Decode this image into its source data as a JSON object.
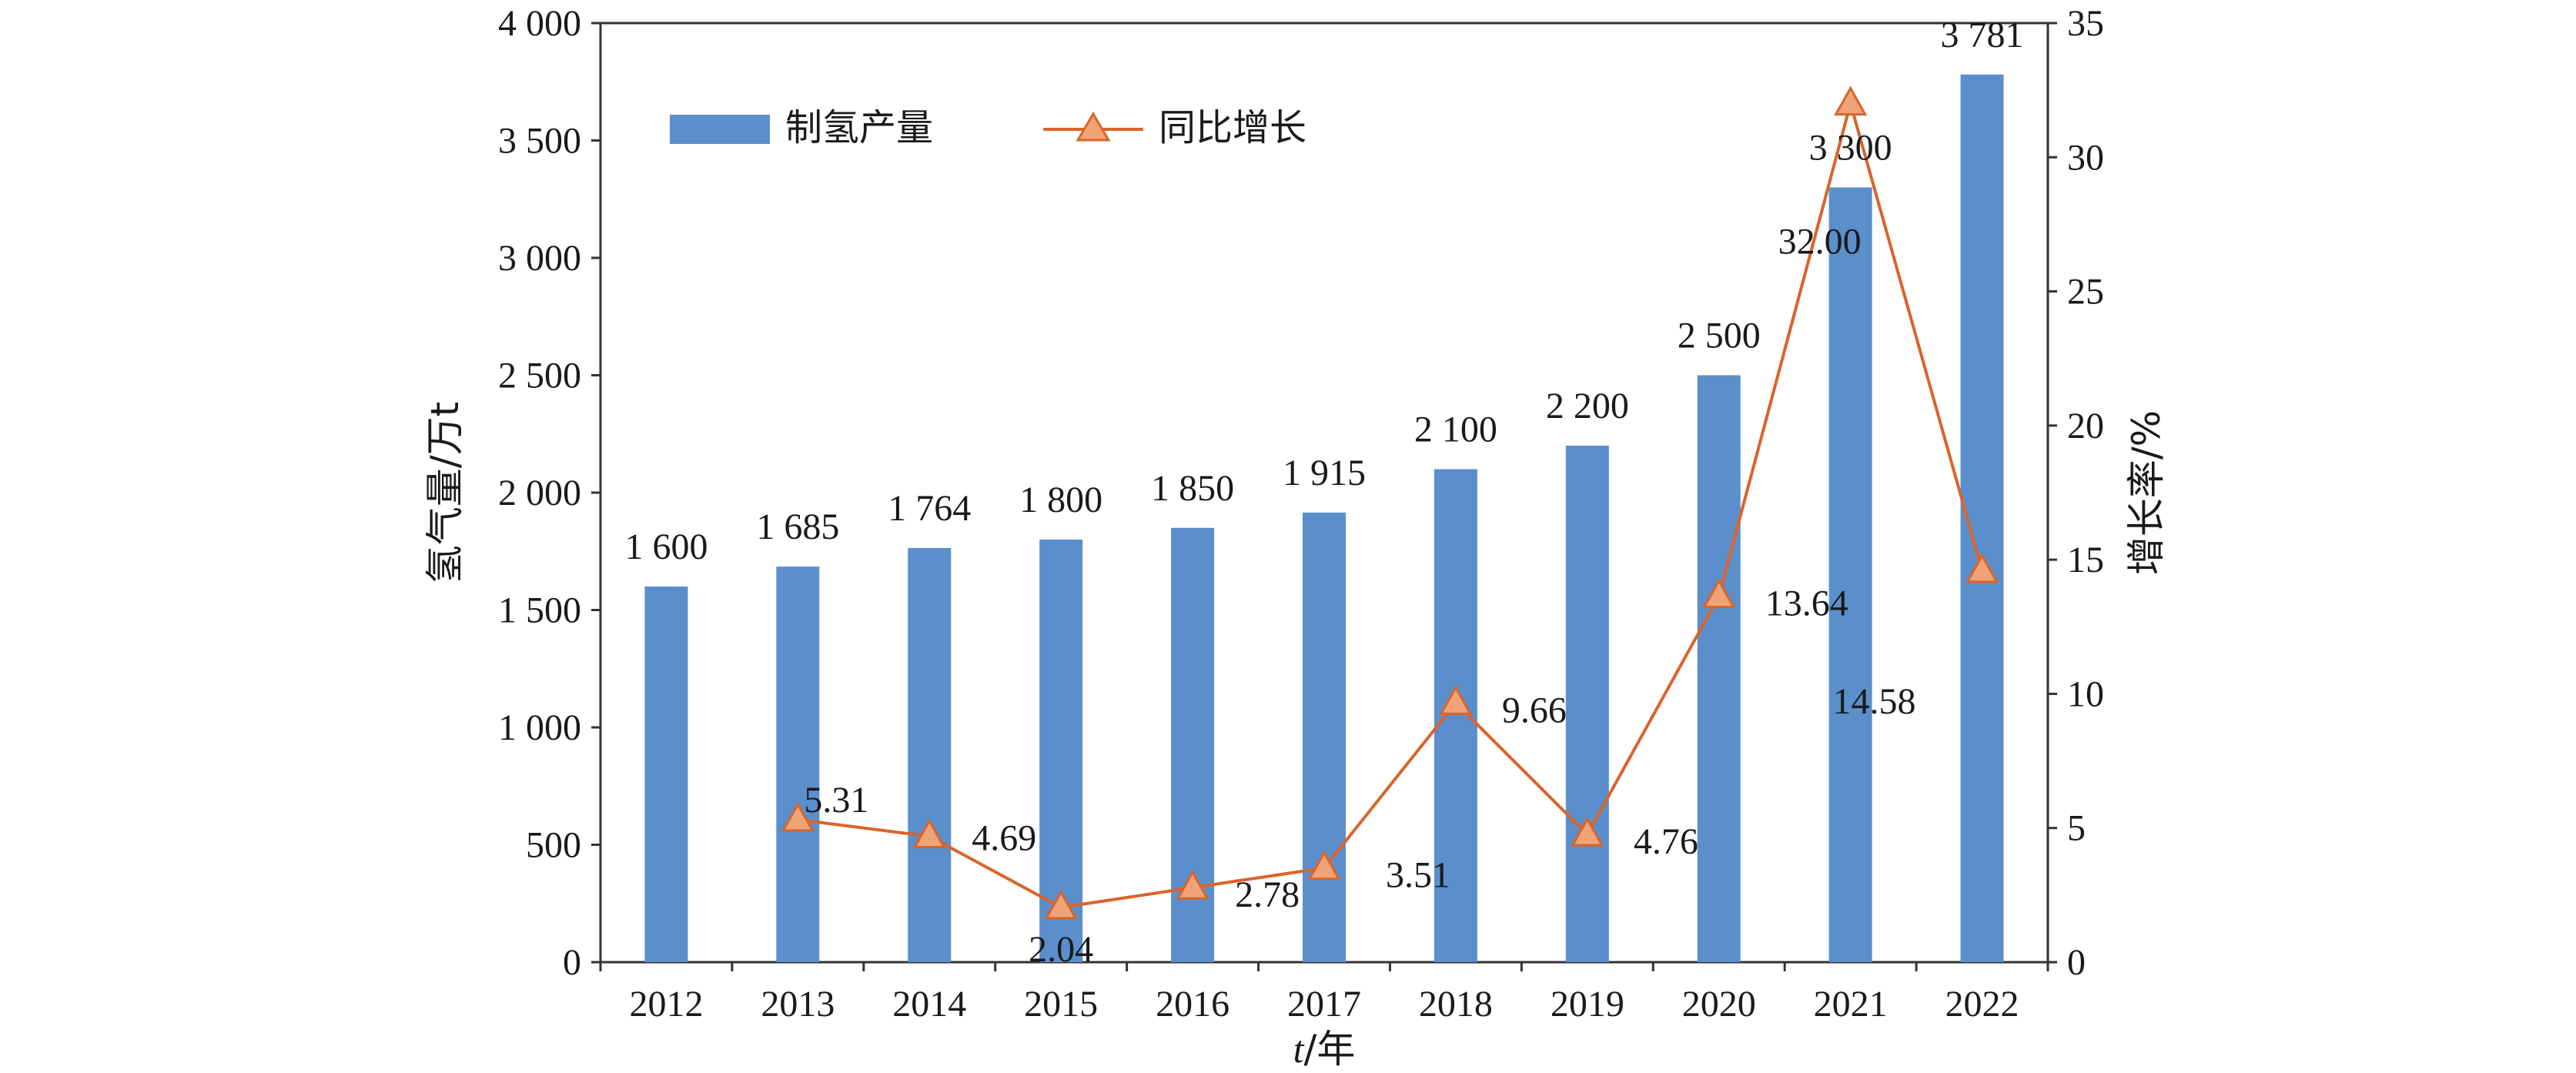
{
  "chart_data": {
    "type": "bar",
    "categories": [
      "2012",
      "2013",
      "2014",
      "2015",
      "2016",
      "2017",
      "2018",
      "2019",
      "2020",
      "2021",
      "2022"
    ],
    "series": [
      {
        "name": "制氢产量",
        "kind": "bar",
        "axis": "left",
        "values": [
          1600,
          1685,
          1764,
          1800,
          1850,
          1915,
          2100,
          2200,
          2500,
          3300,
          3781
        ],
        "labels": [
          "1 600",
          "1 685",
          "1 764",
          "1 800",
          "1 850",
          "1 915",
          "2 100",
          "2 200",
          "2 500",
          "3 300",
          "3 781"
        ]
      },
      {
        "name": "同比增长",
        "kind": "line",
        "axis": "right",
        "values": [
          null,
          5.31,
          4.69,
          2.04,
          2.78,
          3.51,
          9.66,
          4.76,
          13.64,
          32.0,
          14.58
        ],
        "labels": [
          "",
          "5.31",
          "4.69",
          "2.04",
          "2.78",
          "3.51",
          "9.66",
          "4.76",
          "13.64",
          "32.00",
          "14.58"
        ]
      }
    ],
    "xlabel_italic": "t",
    "xlabel_rest": "/年",
    "ylabel": "氢气量/万t",
    "y2label": "增长率/%",
    "ylim": [
      0,
      4000
    ],
    "y2lim": [
      0,
      35
    ],
    "yticks": [
      "0",
      "500",
      "1 000",
      "1 500",
      "2 000",
      "2 500",
      "3 000",
      "3 500",
      "4 000"
    ],
    "y2ticks": [
      "0",
      "5",
      "10",
      "15",
      "20",
      "25",
      "30",
      "35"
    ],
    "legend_position": "top-left",
    "grid": false,
    "colors": {
      "bar": "#5b8fcc",
      "line": "#d9642b",
      "marker_fill": "#f0a376",
      "marker_stroke": "#d9642b"
    }
  }
}
